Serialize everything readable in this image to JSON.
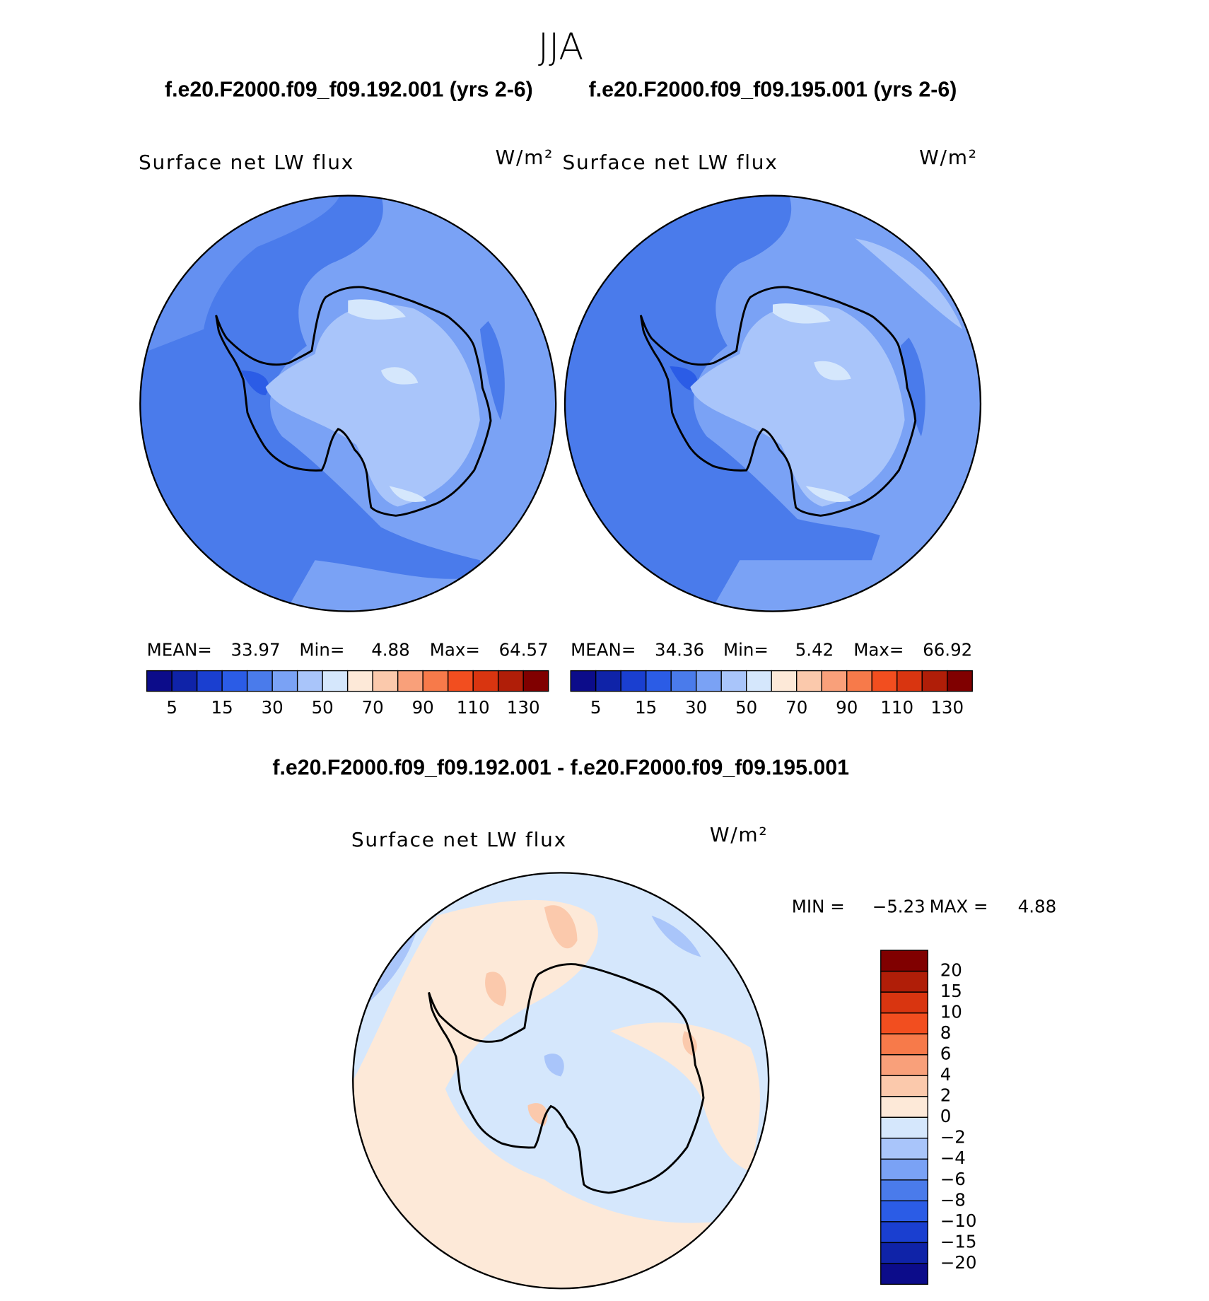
{
  "title": "JJA",
  "panels": [
    {
      "case_title": "f.e20.F2000.f09_f09.192.001 (yrs 2-6)",
      "field": "Surface net LW flux",
      "units": "W/m²",
      "stats": {
        "mean_label": "MEAN=",
        "mean": 33.97,
        "min_label": "Min=",
        "min": 4.88,
        "max_label": "Max=",
        "max": 64.57
      },
      "colorbar": {
        "colors": [
          "#0c0c8a",
          "#0f23a8",
          "#1a3fd0",
          "#2b5ce6",
          "#4a7beb",
          "#7aa2f5",
          "#a9c5fa",
          "#d5e7fc",
          "#fde9d8",
          "#fbc9ac",
          "#f9a07a",
          "#f77a4a",
          "#f24e1f",
          "#d93510",
          "#b01e08",
          "#800000"
        ],
        "labels": [
          5,
          15,
          30,
          50,
          70,
          90,
          110,
          130
        ]
      }
    },
    {
      "case_title": "f.e20.F2000.f09_f09.195.001 (yrs 2-6)",
      "field": "Surface net LW flux",
      "units": "W/m²",
      "stats": {
        "mean_label": "MEAN=",
        "mean": 34.36,
        "min_label": "Min=",
        "min": 5.42,
        "max_label": "Max=",
        "max": 66.92
      },
      "colorbar": {
        "colors": [
          "#0c0c8a",
          "#0f23a8",
          "#1a3fd0",
          "#2b5ce6",
          "#4a7beb",
          "#7aa2f5",
          "#a9c5fa",
          "#d5e7fc",
          "#fde9d8",
          "#fbc9ac",
          "#f9a07a",
          "#f77a4a",
          "#f24e1f",
          "#d93510",
          "#b01e08",
          "#800000"
        ],
        "labels": [
          5,
          15,
          30,
          50,
          70,
          90,
          110,
          130
        ]
      }
    }
  ],
  "difference": {
    "title": "f.e20.F2000.f09_f09.192.001 - f.e20.F2000.f09_f09.195.001",
    "field": "Surface net LW flux",
    "units": "W/m²",
    "min_label": "MIN =",
    "min": {
      "value": -5.23,
      "label": "−5.23"
    },
    "max_label": "MAX =",
    "max": 4.88,
    "colorbar": {
      "colors": [
        "#0c0c8a",
        "#0f23a8",
        "#1a3fd0",
        "#2b5ce6",
        "#4a7beb",
        "#7aa2f5",
        "#a9c5fa",
        "#d5e7fc",
        "#fde9d8",
        "#fbc9ac",
        "#f9a07a",
        "#f77a4a",
        "#f24e1f",
        "#d93510",
        "#b01e08",
        "#800000"
      ],
      "labels": [
        {
          "value": -20,
          "label": "−20"
        },
        {
          "value": -15,
          "label": "−15"
        },
        {
          "value": -10,
          "label": "−10"
        },
        {
          "value": -8,
          "label": "−8"
        },
        {
          "value": -6,
          "label": "−6"
        },
        {
          "value": -4,
          "label": "−4"
        },
        {
          "value": -2,
          "label": "−2"
        },
        0,
        2,
        4,
        6,
        8,
        10,
        15,
        20
      ]
    }
  }
}
